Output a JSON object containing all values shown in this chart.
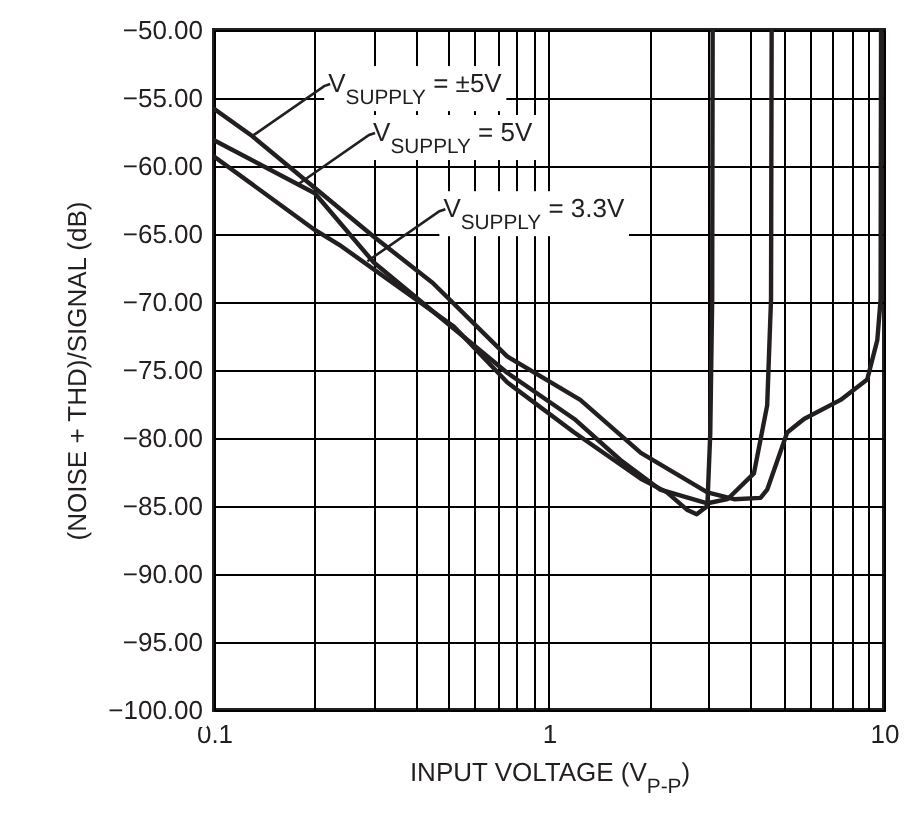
{
  "chart_data": {
    "type": "line",
    "xlabel": "INPUT VOLTAGE (V$_{P-P}$)",
    "ylabel": "(NOISE + THD)/SIGNAL (dB)",
    "log": "x",
    "grid": true,
    "marker": "none",
    "line_style": "solid",
    "xlim": [
      0.1,
      10
    ],
    "ylim": [
      -100,
      -50
    ],
    "xticks": [
      {
        "value": 0.1,
        "label": "0.1"
      },
      {
        "value": 0.2,
        "label": null
      },
      {
        "value": 0.3,
        "label": null
      },
      {
        "value": 0.4,
        "label": null
      },
      {
        "value": 0.5,
        "label": null
      },
      {
        "value": 0.6,
        "label": null
      },
      {
        "value": 0.7,
        "label": null
      },
      {
        "value": 0.8,
        "label": null
      },
      {
        "value": 0.9,
        "label": null
      },
      {
        "value": 1,
        "label": "1"
      },
      {
        "value": 2,
        "label": null
      },
      {
        "value": 3,
        "label": null
      },
      {
        "value": 4,
        "label": null
      },
      {
        "value": 5,
        "label": null
      },
      {
        "value": 6,
        "label": null
      },
      {
        "value": 7,
        "label": null
      },
      {
        "value": 8,
        "label": null
      },
      {
        "value": 9,
        "label": null
      },
      {
        "value": 10,
        "label": "10"
      }
    ],
    "yticks": [
      {
        "value": -100,
        "label": "−100.00"
      },
      {
        "value": -95,
        "label": "−95.00"
      },
      {
        "value": -90,
        "label": "−90.00"
      },
      {
        "value": -85,
        "label": "−85.00"
      },
      {
        "value": -80,
        "label": "−80.00"
      },
      {
        "value": -75,
        "label": "−75.00"
      },
      {
        "value": -70,
        "label": "−70.00"
      },
      {
        "value": -65,
        "label": "−65.00"
      },
      {
        "value": -60,
        "label": "−60.00"
      },
      {
        "value": -55,
        "label": "−55.00"
      },
      {
        "value": -50,
        "label": "−50.00"
      }
    ],
    "series": [
      {
        "color": "#231f20",
        "x": [
          0.1,
          0.13,
          0.3,
          0.45,
          0.75,
          1.24,
          1.88,
          2.97,
          3.57,
          4.28,
          4.48,
          5.14,
          5.77,
          7.42,
          8.91,
          9.55,
          9.77,
          9.8
        ],
        "values": [
          -55.8,
          -57.8,
          -65.2,
          -68.6,
          -74.0,
          -77.2,
          -81.1,
          -84.0,
          -84.5,
          -84.4,
          -83.8,
          -79.6,
          -78.6,
          -77.2,
          -75.7,
          -72.8,
          -69.8,
          -50
        ]
      },
      {
        "color": "#231f20",
        "x": [
          0.1,
          0.2,
          0.3,
          0.75,
          1.19,
          1.63,
          2.15,
          2.97,
          3.41,
          4.09,
          4.48,
          4.6,
          4.62
        ],
        "values": [
          -58.1,
          -62.0,
          -67.1,
          -75.2,
          -78.6,
          -81.6,
          -83.8,
          -84.8,
          -84.5,
          -82.6,
          -77.6,
          -69.8,
          -50
        ]
      },
      {
        "color": "#231f20",
        "x": [
          0.1,
          0.2,
          0.24,
          0.52,
          0.75,
          1.19,
          1.88,
          2.25,
          2.59,
          2.76,
          2.97,
          3.03,
          3.07,
          3.08
        ],
        "values": [
          -59.3,
          -64.7,
          -65.9,
          -71.8,
          -75.9,
          -79.6,
          -83.0,
          -84.0,
          -85.3,
          -85.6,
          -85.0,
          -79.6,
          -69.8,
          -50
        ]
      }
    ],
    "annotations": [
      {
        "text": "V$_{SUPPLY}$ = ±5V",
        "x": 0.13,
        "y": -57.8
      },
      {
        "text": "V$_{SUPPLY}$ = 5V",
        "x": 0.177,
        "y": -61.4
      },
      {
        "text": "V$_{SUPPLY}$ = 3.3V",
        "x": 0.287,
        "y": -67.0
      }
    ]
  }
}
